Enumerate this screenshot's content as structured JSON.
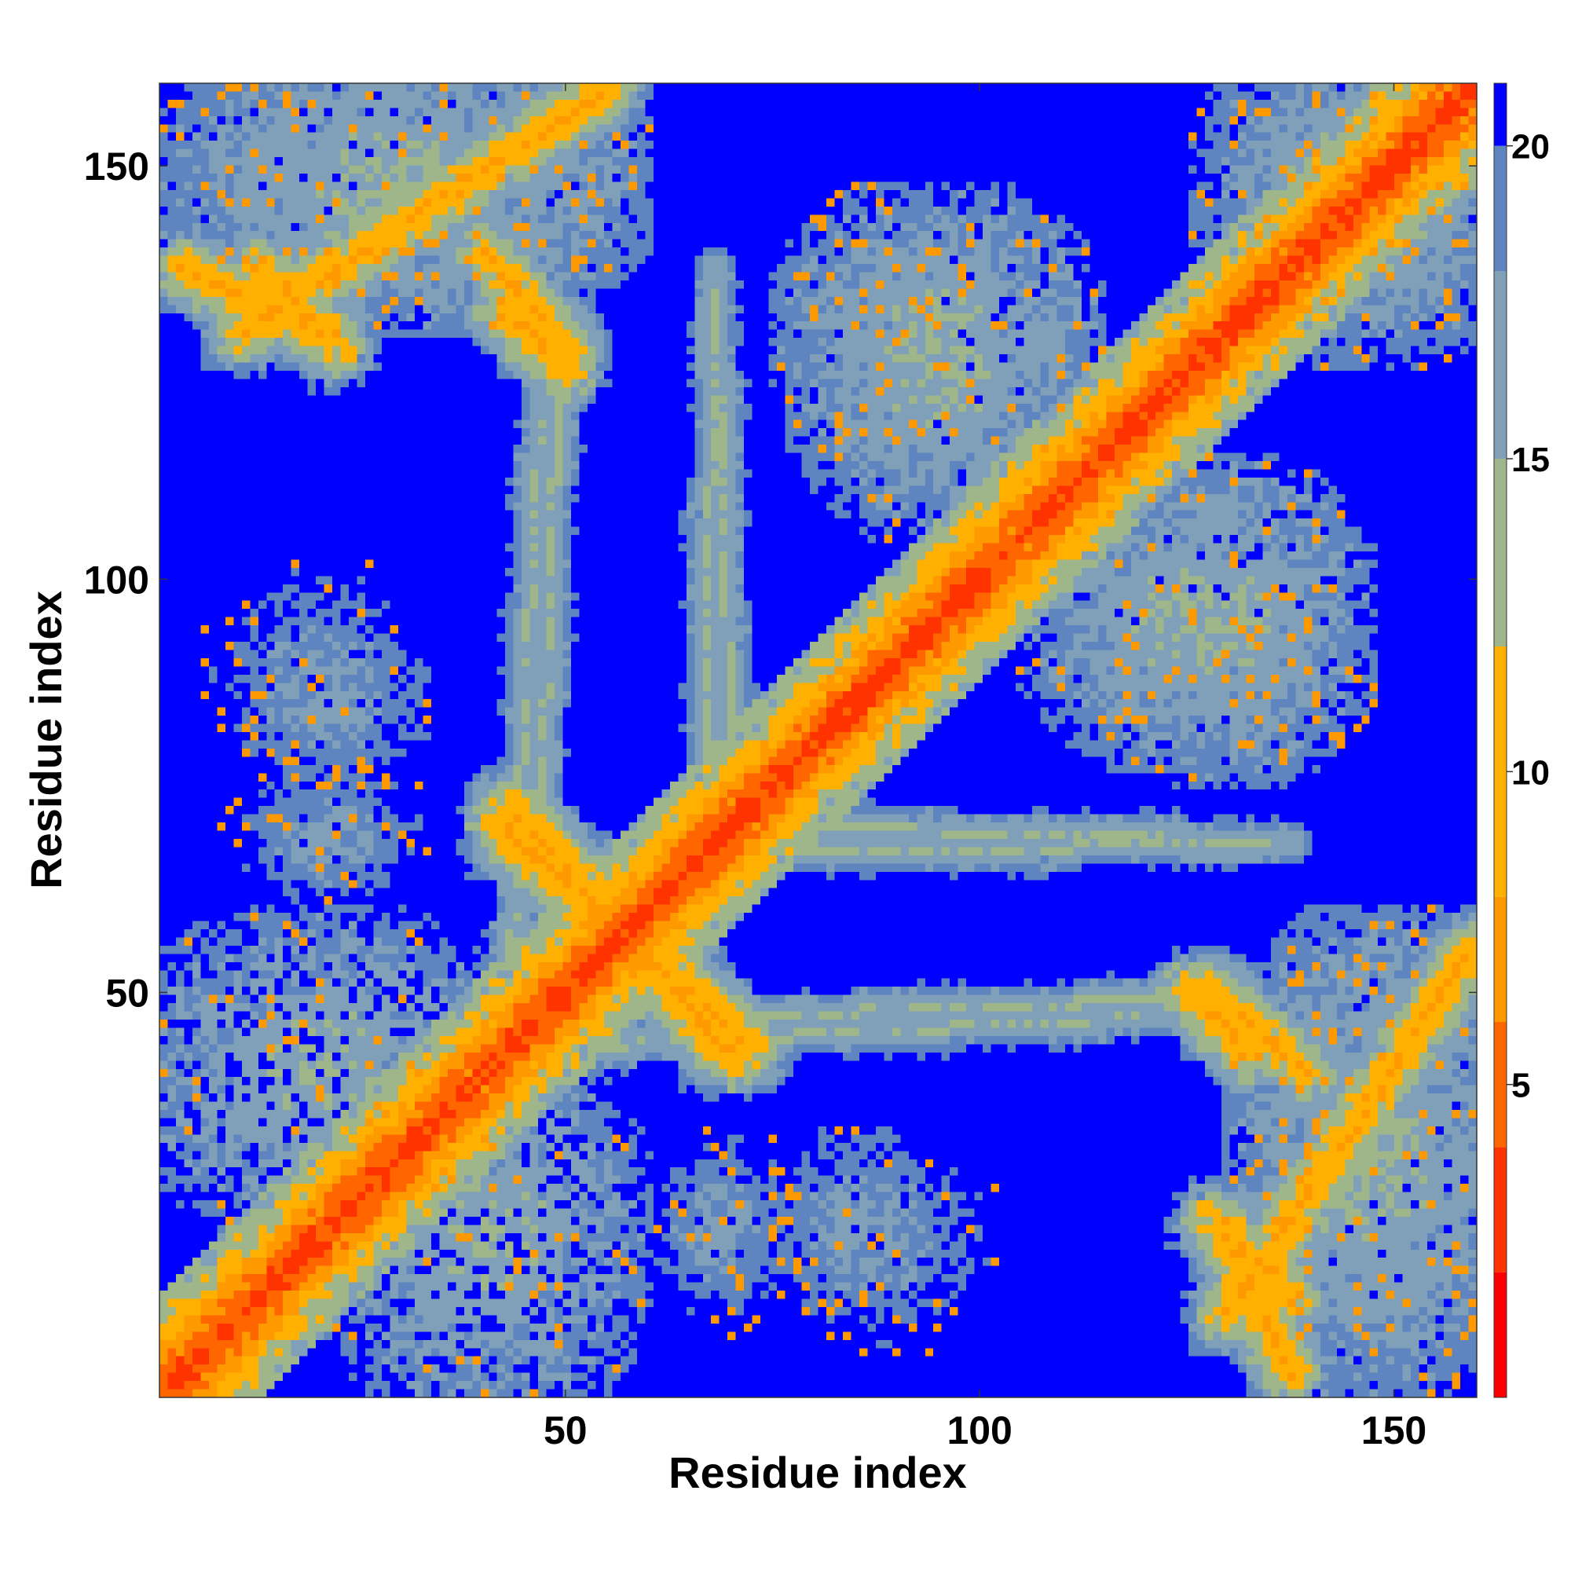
{
  "chart_data": {
    "type": "heatmap",
    "title": "",
    "xlabel": "Residue index",
    "ylabel": "Residue index",
    "xlim": [
      1,
      160
    ],
    "ylim": [
      1,
      160
    ],
    "x_ticks": [
      50,
      100,
      150
    ],
    "y_ticks": [
      50,
      100,
      150
    ],
    "n_residues": 160,
    "colorbar": {
      "range": [
        0,
        21
      ],
      "ticks": [
        5,
        10,
        15,
        20
      ],
      "colors": [
        "#ff0000",
        "#ff3300",
        "#ff6600",
        "#ff9900",
        "#ffb000",
        "#9fb58a",
        "#7fa0b8",
        "#5f85c0",
        "#0000ff"
      ],
      "bounds": [
        0,
        2,
        4,
        6,
        8,
        12,
        15,
        18,
        20,
        21
      ]
    },
    "contact_features": [
      {
        "kind": "diagonal",
        "from": 1,
        "to": 160,
        "value": 2
      },
      {
        "kind": "antiparallel",
        "from": [
          42,
          70
        ],
        "to": [
          72,
          43
        ],
        "value": 6
      },
      {
        "kind": "antiparallel",
        "from": [
          55,
          160
        ],
        "to": [
          10,
          130
        ],
        "value": 7
      },
      {
        "kind": "antiparallel",
        "from": [
          42,
          133
        ],
        "to": [
          50,
          125
        ],
        "value": 7
      },
      {
        "kind": "antiparallel",
        "from": [
          128,
          50
        ],
        "to": [
          140,
          40
        ],
        "value": 7
      },
      {
        "kind": "antiparallel",
        "from": [
          128,
          22
        ],
        "to": [
          138,
          12
        ],
        "value": 7
      },
      {
        "kind": "antiparallel",
        "from": [
          3,
          138
        ],
        "to": [
          20,
          130
        ],
        "value": 7
      },
      {
        "kind": "band",
        "from": [
          72,
          47
        ],
        "to": [
          125,
          49
        ],
        "value": 13
      },
      {
        "kind": "band",
        "from": [
          80,
          70
        ],
        "to": [
          138,
          68
        ],
        "value": 13
      },
      {
        "kind": "band",
        "from": [
          42,
          30
        ],
        "to": [
          47,
          125
        ],
        "value": 13
      },
      {
        "kind": "band",
        "from": [
          66,
          40
        ],
        "to": [
          68,
          135
        ],
        "value": 13
      },
      {
        "kind": "blob",
        "center": [
          22,
          85
        ],
        "size": [
          12,
          12
        ],
        "value": 15
      },
      {
        "kind": "blob",
        "center": [
          22,
          70
        ],
        "size": [
          12,
          8
        ],
        "value": 15
      },
      {
        "kind": "blob",
        "center": [
          68,
          20
        ],
        "size": [
          10,
          12
        ],
        "value": 15
      },
      {
        "kind": "blob",
        "center": [
          88,
          20
        ],
        "size": [
          14,
          14
        ],
        "value": 15
      },
      {
        "kind": "blob",
        "center": [
          95,
          130
        ],
        "size": [
          20,
          18
        ],
        "value": 13
      },
      {
        "kind": "blob",
        "center": [
          125,
          95
        ],
        "size": [
          20,
          18
        ],
        "value": 13
      },
      {
        "kind": "blob",
        "center": [
          30,
          148
        ],
        "size": [
          30,
          18
        ],
        "value": 13
      },
      {
        "kind": "blob",
        "center": [
          148,
          30
        ],
        "size": [
          18,
          30
        ],
        "value": 13
      },
      {
        "kind": "blob",
        "center": [
          148,
          148
        ],
        "size": [
          22,
          18
        ],
        "value": 13
      },
      {
        "kind": "blob",
        "center": [
          20,
          40
        ],
        "size": [
          24,
          20
        ],
        "value": 13
      },
      {
        "kind": "blob",
        "center": [
          140,
          90
        ],
        "size": [
          10,
          12
        ],
        "value": 17
      }
    ]
  }
}
